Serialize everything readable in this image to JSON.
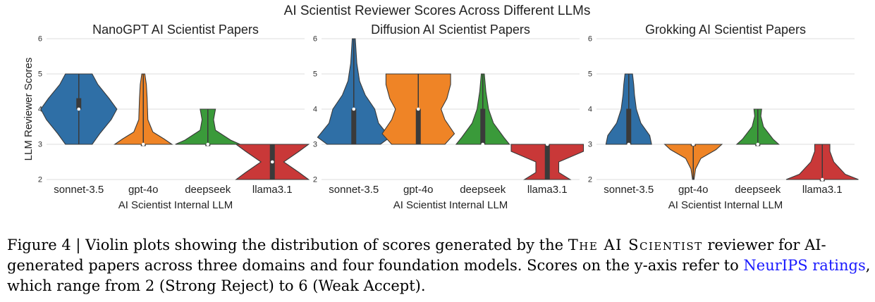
{
  "chart_data": {
    "suptitle": "AI Scientist Reviewer Scores Across Different LLMs",
    "type": "violin",
    "panels": [
      {
        "title": "NanoGPT AI Scientist Papers",
        "xlabel": "AI Scientist Internal LLM",
        "ylabel": "LLM Reviewer Scores",
        "ylim": [
          2,
          6
        ],
        "yticks": [
          2,
          3,
          4,
          5,
          6
        ],
        "categories": [
          "sonnet-3.5",
          "gpt-4o",
          "deepseek",
          "llama3.1"
        ],
        "violins": [
          {
            "range": [
              3,
              5
            ],
            "profile": [
              [
                3,
                0.35
              ],
              [
                3.3,
                0.55
              ],
              [
                3.7,
                0.85
              ],
              [
                4,
                1.0
              ],
              [
                4.3,
                0.8
              ],
              [
                4.7,
                0.5
              ],
              [
                5,
                0.35
              ]
            ],
            "box": {
              "q1": 4,
              "median": 4,
              "q3": 4.3
            }
          },
          {
            "range": [
              3,
              5
            ],
            "profile": [
              [
                3,
                0.75
              ],
              [
                3.15,
                0.55
              ],
              [
                3.35,
                0.25
              ],
              [
                3.7,
                0.12
              ],
              [
                4.3,
                0.1
              ],
              [
                4.7,
                0.08
              ],
              [
                5,
                0.04
              ]
            ],
            "box": {
              "q1": 3,
              "median": 3,
              "q3": 3
            }
          },
          {
            "range": [
              3,
              4
            ],
            "profile": [
              [
                3,
                0.85
              ],
              [
                3.12,
                0.6
              ],
              [
                3.4,
                0.2
              ],
              [
                3.7,
                0.15
              ],
              [
                4,
                0.2
              ]
            ],
            "box": {
              "q1": 3,
              "median": 3,
              "q3": 3
            }
          },
          {
            "range": [
              2,
              3
            ],
            "profile": [
              [
                2,
                0.95
              ],
              [
                2.2,
                0.7
              ],
              [
                2.5,
                0.3
              ],
              [
                2.8,
                0.7
              ],
              [
                3,
                0.95
              ]
            ],
            "box": {
              "q1": 2,
              "median": 2.5,
              "q3": 3
            }
          }
        ]
      },
      {
        "title": "Diffusion AI Scientist Papers",
        "xlabel": "AI Scientist Internal LLM",
        "ylabel": "",
        "ylim": [
          2,
          6
        ],
        "yticks": [
          2,
          3,
          4,
          5,
          6
        ],
        "categories": [
          "sonnet-3.5",
          "gpt-4o",
          "deepseek",
          "llama3.1"
        ],
        "violins": [
          {
            "range": [
              3,
              6
            ],
            "profile": [
              [
                3,
                0.7
              ],
              [
                3.2,
                0.95
              ],
              [
                3.6,
                0.65
              ],
              [
                4,
                0.55
              ],
              [
                4.4,
                0.3
              ],
              [
                4.8,
                0.15
              ],
              [
                5.3,
                0.08
              ],
              [
                6,
                0.04
              ]
            ],
            "box": {
              "q1": 3,
              "median": 4,
              "q3": 4
            }
          },
          {
            "range": [
              3,
              5
            ],
            "profile": [
              [
                3,
                0.7
              ],
              [
                3.3,
                0.95
              ],
              [
                3.7,
                0.7
              ],
              [
                4,
                0.6
              ],
              [
                4.3,
                0.75
              ],
              [
                4.7,
                0.85
              ],
              [
                5,
                0.85
              ]
            ],
            "box": {
              "q1": 3,
              "median": 4,
              "q3": 4
            }
          },
          {
            "range": [
              3,
              5
            ],
            "profile": [
              [
                3,
                0.7
              ],
              [
                3.2,
                0.55
              ],
              [
                3.6,
                0.28
              ],
              [
                4,
                0.15
              ],
              [
                4.5,
                0.08
              ],
              [
                5,
                0.04
              ]
            ],
            "box": {
              "q1": 3,
              "median": 3,
              "q3": 4
            }
          },
          {
            "range": [
              2,
              3
            ],
            "profile": [
              [
                2,
                0.6
              ],
              [
                2.2,
                0.3
              ],
              [
                2.5,
                0.3
              ],
              [
                2.8,
                0.95
              ],
              [
                3,
                0.95
              ]
            ],
            "box": {
              "q1": 2,
              "median": 3,
              "q3": 3
            }
          }
        ]
      },
      {
        "title": "Grokking AI Scientist Papers",
        "xlabel": "AI Scientist Internal LLM",
        "ylabel": "",
        "ylim": [
          2,
          6
        ],
        "yticks": [
          2,
          3,
          4,
          5,
          6
        ],
        "categories": [
          "sonnet-3.5",
          "gpt-4o",
          "deepseek",
          "llama3.1"
        ],
        "violins": [
          {
            "range": [
              3,
              5
            ],
            "profile": [
              [
                3,
                0.6
              ],
              [
                3.25,
                0.55
              ],
              [
                3.6,
                0.32
              ],
              [
                4,
                0.2
              ],
              [
                4.4,
                0.15
              ],
              [
                4.7,
                0.13
              ],
              [
                5,
                0.1
              ]
            ],
            "box": {
              "q1": 3,
              "median": 3,
              "q3": 4
            }
          },
          {
            "range": [
              2,
              3
            ],
            "profile": [
              [
                2,
                0.02
              ],
              [
                2.3,
                0.06
              ],
              [
                2.6,
                0.2
              ],
              [
                2.85,
                0.6
              ],
              [
                3,
                0.75
              ]
            ],
            "box": {
              "q1": 3,
              "median": 3,
              "q3": 3
            }
          },
          {
            "range": [
              3,
              4
            ],
            "profile": [
              [
                3,
                0.55
              ],
              [
                3.15,
                0.4
              ],
              [
                3.5,
                0.15
              ],
              [
                3.8,
                0.08
              ],
              [
                4,
                0.1
              ]
            ],
            "box": {
              "q1": 3,
              "median": 3,
              "q3": 3
            }
          },
          {
            "range": [
              2,
              3
            ],
            "profile": [
              [
                2,
                0.95
              ],
              [
                2.15,
                0.6
              ],
              [
                2.5,
                0.3
              ],
              [
                2.8,
                0.2
              ],
              [
                3,
                0.2
              ]
            ],
            "box": {
              "q1": 2,
              "median": 2,
              "q3": 2
            }
          }
        ]
      }
    ],
    "colors": [
      "#2f6fa6",
      "#ef8426",
      "#3a9a3a",
      "#c93838"
    ]
  },
  "caption": {
    "label": "Figure 4 | Violin plots showing the distribution of scores generated by the",
    "system_name": "The AI Scientist",
    "rest": "reviewer for AI-generated papers across three domains and four foundation models. Scores on the y-axis refer to",
    "link_text": "NeurIPS ratings",
    "end": ", which range from 2 (Strong Reject) to 6 (Weak Accept)."
  }
}
